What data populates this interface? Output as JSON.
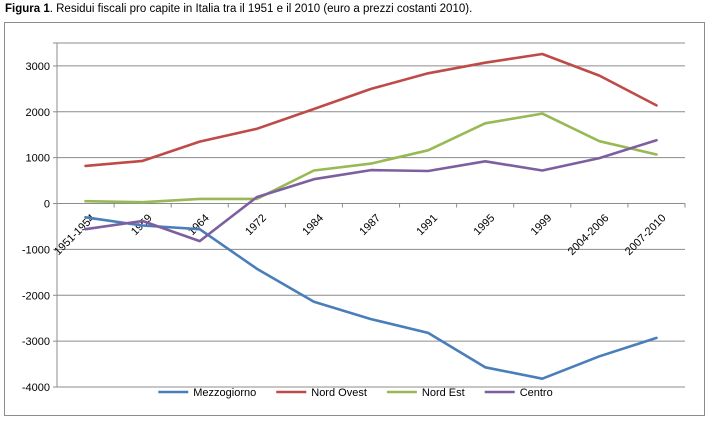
{
  "caption": {
    "label": "Figura 1",
    "text": ". Residui fiscali pro capite in Italia tra il 1951 e il 2010 (euro a prezzi costanti 2010)."
  },
  "chart_data": {
    "type": "line",
    "title": "Residui fiscali pro capite in Italia tra il 1951 e il 2010 (euro a prezzi costanti 2010)",
    "xlabel": "",
    "ylabel": "",
    "categories": [
      "1951-1954",
      "1959",
      "1964",
      "1972",
      "1984",
      "1987",
      "1991",
      "1995",
      "1999",
      "2004-2006",
      "2007-2010"
    ],
    "ylim": [
      -4000,
      3500
    ],
    "yticks": [
      3000,
      2000,
      1000,
      0,
      -1000,
      -2000,
      -3000,
      -4000
    ],
    "ytick_labels": [
      "3000",
      "2000",
      "1000",
      "0",
      "-1000",
      "-2000",
      "-3000",
      "-4000"
    ],
    "grid": true,
    "legend_position": "bottom",
    "series": [
      {
        "name": "Mezzogiorno",
        "color": "#4a7ebb",
        "values": [
          -300,
          -480,
          -560,
          -1420,
          -2140,
          -2520,
          -2820,
          -3570,
          -3820,
          -3330,
          -2930
        ]
      },
      {
        "name": "Nord Ovest",
        "color": "#be4b48",
        "values": [
          820,
          930,
          1350,
          1630,
          2060,
          2500,
          2840,
          3070,
          3260,
          2790,
          2140
        ]
      },
      {
        "name": "Nord Est",
        "color": "#98b954",
        "values": [
          50,
          30,
          100,
          100,
          720,
          870,
          1160,
          1750,
          1960,
          1360,
          1070
        ]
      },
      {
        "name": "Centro",
        "color": "#7d5fa0",
        "values": [
          -560,
          -380,
          -820,
          140,
          530,
          730,
          710,
          920,
          720,
          990,
          1380
        ]
      }
    ]
  }
}
